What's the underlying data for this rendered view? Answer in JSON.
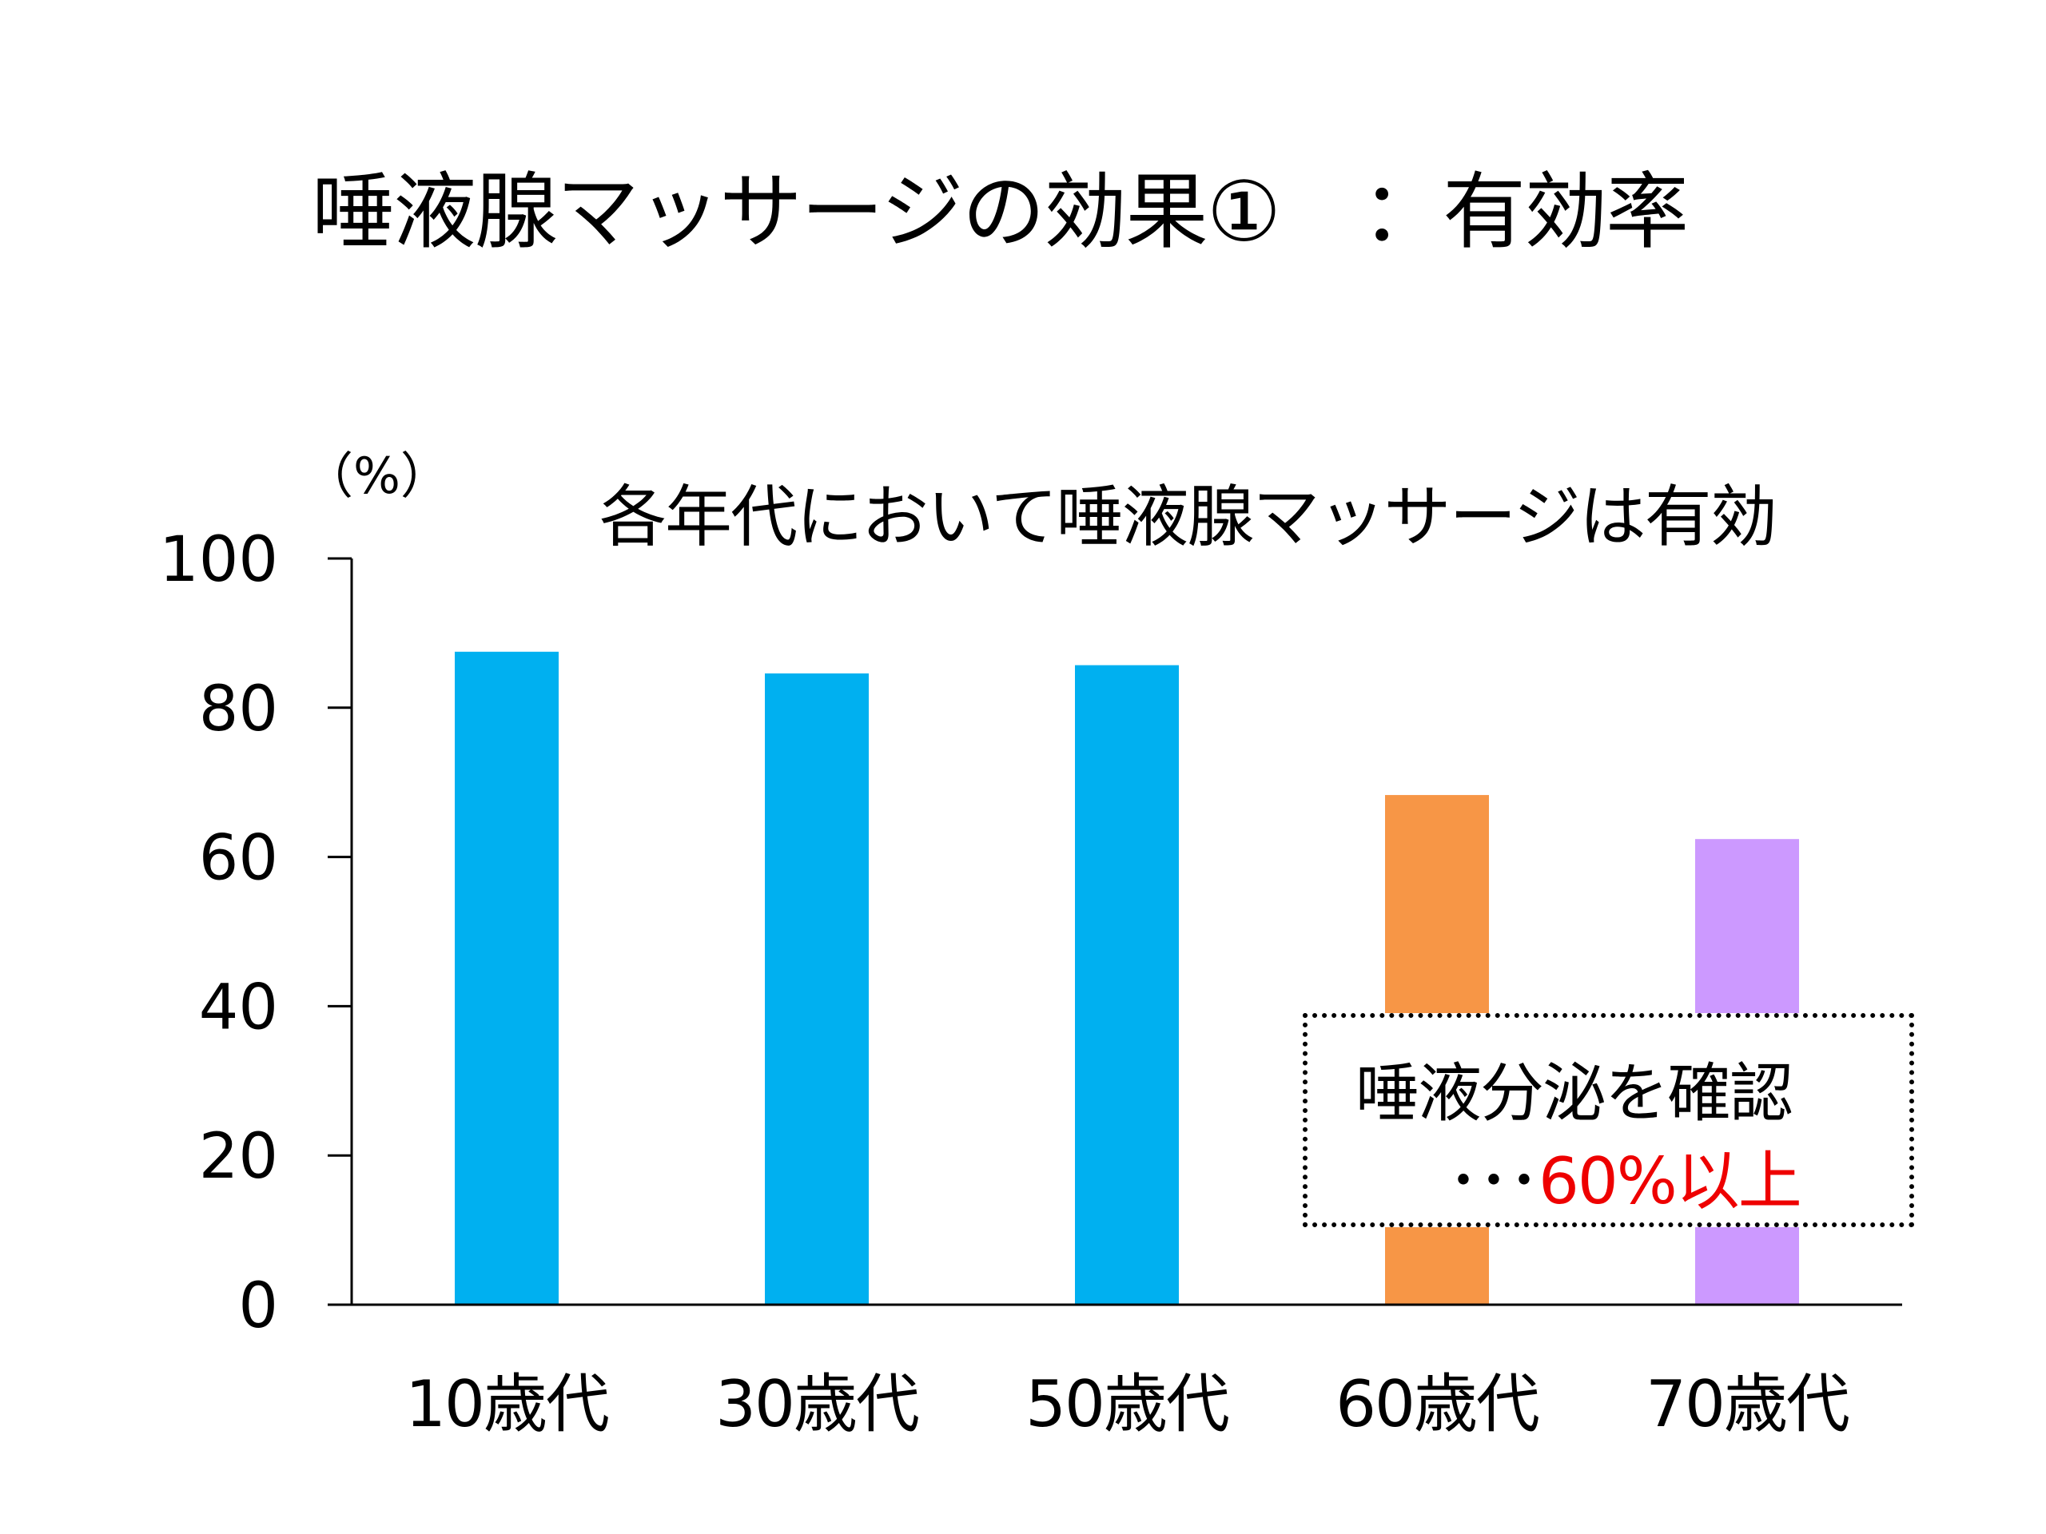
{
  "chart_data": {
    "type": "bar",
    "title": "唾液腺マッサージの効果①　：有効率",
    "subtitle": "各年代において唾液腺マッサージは有効",
    "ylabel": "（%）",
    "xlabel": "",
    "categories": [
      "10歳代",
      "30歳代",
      "50歳代",
      "60歳代",
      "70歳代"
    ],
    "values": [
      87.5,
      84.6,
      85.7,
      68.3,
      62.4
    ],
    "colors": [
      "#00b0f0",
      "#00b0f0",
      "#00b0f0",
      "#f79646",
      "#cc99ff"
    ],
    "ylim": [
      0,
      100
    ],
    "yticks": [
      0,
      20,
      40,
      60,
      80,
      100
    ],
    "grid": false,
    "annotation": {
      "line1": "唾液分泌を確認",
      "dots": "･･･",
      "highlight": "60%以上",
      "highlight_color": "#ee0000"
    }
  }
}
